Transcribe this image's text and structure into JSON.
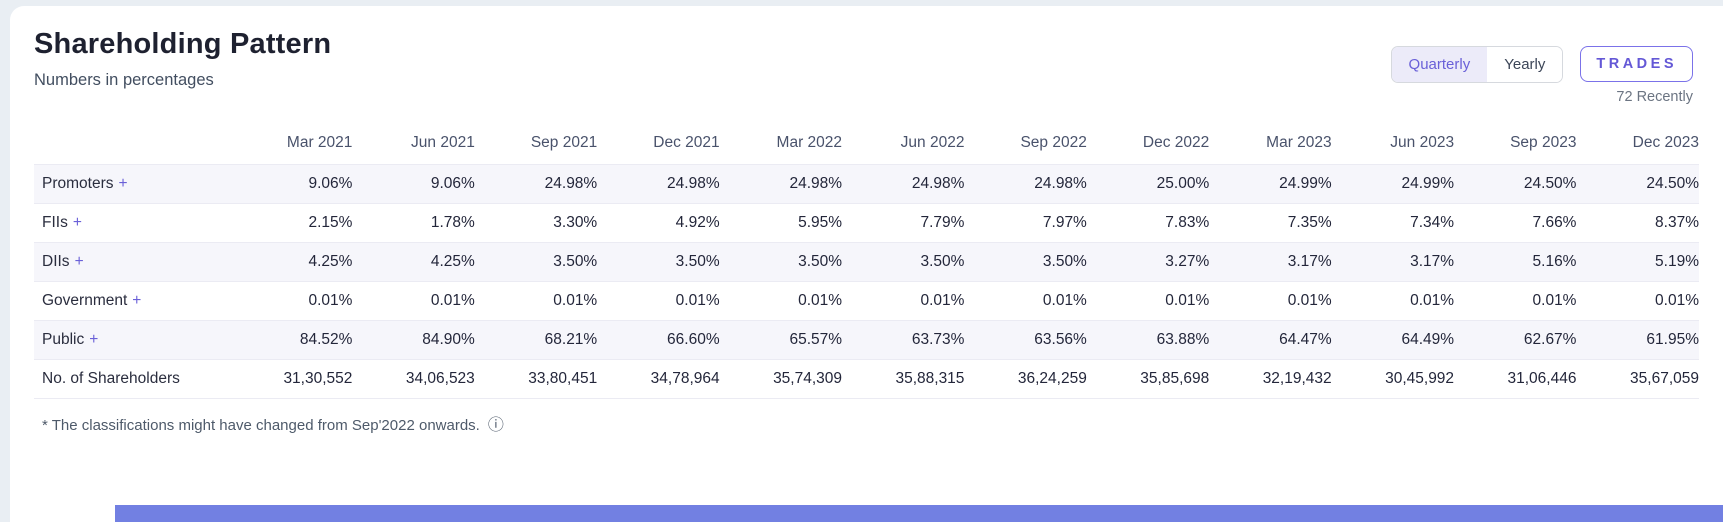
{
  "colors": {
    "accent": "#6a60d8",
    "accent_border": "#7b72e9",
    "toggle_active_bg": "#ecebf9",
    "stripe_bg": "#f6f6fb",
    "page_bg": "#e9eef3",
    "bottom_bar_blue": "#7280e2"
  },
  "header": {
    "title": "Shareholding Pattern",
    "subtitle": "Numbers in percentages",
    "toggle_options": [
      {
        "label": "Quarterly",
        "active": true
      },
      {
        "label": "Yearly",
        "active": false
      }
    ],
    "trades_label": "TRADES",
    "trades_caption": "72 Recently"
  },
  "table": {
    "columns": [
      "Mar 2021",
      "Jun 2021",
      "Sep 2021",
      "Dec 2021",
      "Mar 2022",
      "Jun 2022",
      "Sep 2022",
      "Dec 2022",
      "Mar 2023",
      "Jun 2023",
      "Sep 2023",
      "Dec 2023"
    ],
    "rows": [
      {
        "label": "Promoters",
        "expand": "+",
        "stripe": true,
        "values": [
          "9.06%",
          "9.06%",
          "24.98%",
          "24.98%",
          "24.98%",
          "24.98%",
          "24.98%",
          "25.00%",
          "24.99%",
          "24.99%",
          "24.50%",
          "24.50%"
        ]
      },
      {
        "label": "FIIs",
        "expand": "+",
        "stripe": false,
        "values": [
          "2.15%",
          "1.78%",
          "3.30%",
          "4.92%",
          "5.95%",
          "7.79%",
          "7.97%",
          "7.83%",
          "7.35%",
          "7.34%",
          "7.66%",
          "8.37%"
        ]
      },
      {
        "label": "DIIs",
        "expand": "+",
        "stripe": true,
        "values": [
          "4.25%",
          "4.25%",
          "3.50%",
          "3.50%",
          "3.50%",
          "3.50%",
          "3.50%",
          "3.27%",
          "3.17%",
          "3.17%",
          "5.16%",
          "5.19%"
        ]
      },
      {
        "label": "Government",
        "expand": "+",
        "stripe": false,
        "values": [
          "0.01%",
          "0.01%",
          "0.01%",
          "0.01%",
          "0.01%",
          "0.01%",
          "0.01%",
          "0.01%",
          "0.01%",
          "0.01%",
          "0.01%",
          "0.01%"
        ]
      },
      {
        "label": "Public",
        "expand": "+",
        "stripe": true,
        "values": [
          "84.52%",
          "84.90%",
          "68.21%",
          "66.60%",
          "65.57%",
          "63.73%",
          "63.56%",
          "63.88%",
          "64.47%",
          "64.49%",
          "62.67%",
          "61.95%"
        ]
      },
      {
        "label": "No. of Shareholders",
        "expand": null,
        "stripe": false,
        "values": [
          "31,30,552",
          "34,06,523",
          "33,80,451",
          "34,78,964",
          "35,74,309",
          "35,88,315",
          "36,24,259",
          "35,85,698",
          "32,19,432",
          "30,45,992",
          "31,06,446",
          "35,67,059"
        ]
      }
    ]
  },
  "footnote": {
    "text": "* The classifications might have changed from Sep'2022 onwards.",
    "info_icon": "ⓘ"
  },
  "chart_data": {
    "type": "table",
    "title": "Shareholding Pattern",
    "subtitle": "Numbers in percentages",
    "categories": [
      "Mar 2021",
      "Jun 2021",
      "Sep 2021",
      "Dec 2021",
      "Mar 2022",
      "Jun 2022",
      "Sep 2022",
      "Dec 2022",
      "Mar 2023",
      "Jun 2023",
      "Sep 2023",
      "Dec 2023"
    ],
    "series": [
      {
        "name": "Promoters",
        "unit": "%",
        "values": [
          9.06,
          9.06,
          24.98,
          24.98,
          24.98,
          24.98,
          24.98,
          25.0,
          24.99,
          24.99,
          24.5,
          24.5
        ]
      },
      {
        "name": "FIIs",
        "unit": "%",
        "values": [
          2.15,
          1.78,
          3.3,
          4.92,
          5.95,
          7.79,
          7.97,
          7.83,
          7.35,
          7.34,
          7.66,
          8.37
        ]
      },
      {
        "name": "DIIs",
        "unit": "%",
        "values": [
          4.25,
          4.25,
          3.5,
          3.5,
          3.5,
          3.5,
          3.5,
          3.27,
          3.17,
          3.17,
          5.16,
          5.19
        ]
      },
      {
        "name": "Government",
        "unit": "%",
        "values": [
          0.01,
          0.01,
          0.01,
          0.01,
          0.01,
          0.01,
          0.01,
          0.01,
          0.01,
          0.01,
          0.01,
          0.01
        ]
      },
      {
        "name": "Public",
        "unit": "%",
        "values": [
          84.52,
          84.9,
          68.21,
          66.6,
          65.57,
          63.73,
          63.56,
          63.88,
          64.47,
          64.49,
          62.67,
          61.95
        ]
      },
      {
        "name": "No. of Shareholders",
        "unit": "count",
        "values": [
          3130552,
          3406523,
          3380451,
          3478964,
          3574309,
          3588315,
          3624259,
          3585698,
          3219432,
          3045992,
          3106446,
          3567059
        ]
      }
    ]
  }
}
